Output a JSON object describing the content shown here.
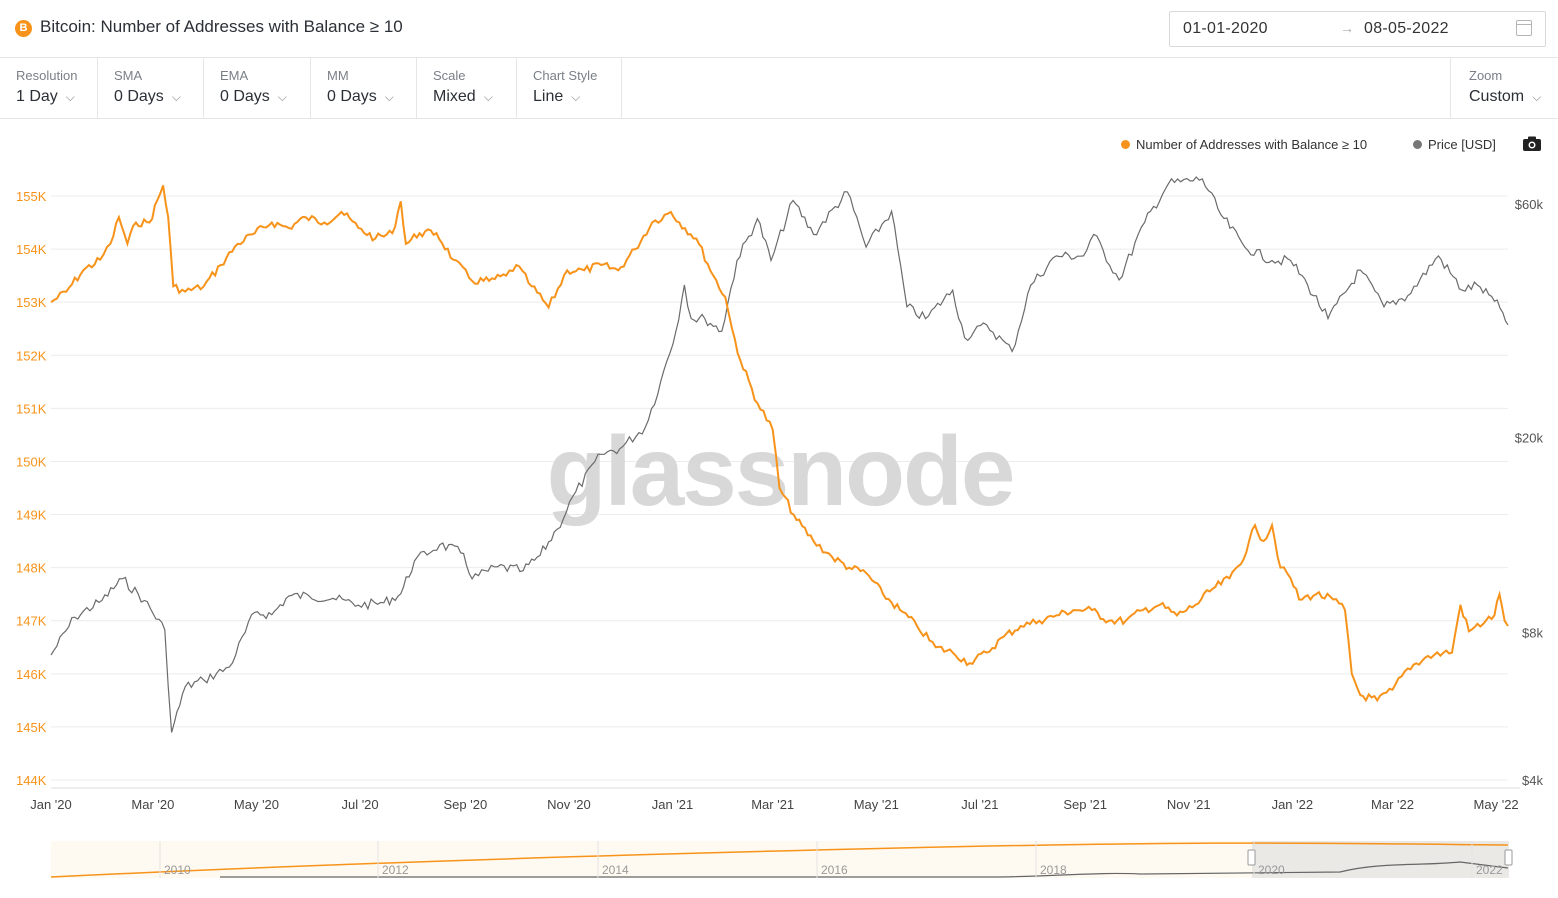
{
  "header": {
    "coin_symbol": "B",
    "title": "Bitcoin: Number of Addresses with Balance ≥ 10",
    "date_start": "01-01-2020",
    "date_arrow": "→",
    "date_end": "08-05-2022"
  },
  "toolbar": [
    {
      "label": "Resolution",
      "value": "1 Day"
    },
    {
      "label": "SMA",
      "value": "0 Days"
    },
    {
      "label": "EMA",
      "value": "0 Days"
    },
    {
      "label": "MM",
      "value": "0 Days"
    },
    {
      "label": "Scale",
      "value": "Mixed"
    },
    {
      "label": "Chart Style",
      "value": "Line"
    }
  ],
  "zoom": {
    "label": "Zoom",
    "value": "Custom"
  },
  "chevron": "⌵",
  "legend": [
    {
      "name": "Number of Addresses with Balance ≥ 10",
      "color": "#f7931a"
    },
    {
      "name": "Price [USD]",
      "color": "#777777"
    }
  ],
  "watermark": "glassnode",
  "colors": {
    "addresses": "#f7931a",
    "price": "#6b6b6b",
    "grid": "#ececec"
  },
  "chart_data": {
    "type": "line",
    "x_ticks": [
      "Jan '20",
      "Mar '20",
      "May '20",
      "Jul '20",
      "Sep '20",
      "Nov '20",
      "Jan '21",
      "Mar '21",
      "May '21",
      "Jul '21",
      "Sep '21",
      "Nov '21",
      "Jan '22",
      "Mar '22",
      "May '22"
    ],
    "y_left": {
      "ticks": [
        "155K",
        "154K",
        "153K",
        "152K",
        "151K",
        "150K",
        "149K",
        "148K",
        "147K",
        "146K",
        "145K",
        "144K"
      ],
      "range": [
        144000,
        155000
      ]
    },
    "y_right": {
      "ticks": [
        "$60k",
        "$20k",
        "$8k",
        "$4k"
      ],
      "scale": "log",
      "range": [
        4000,
        60000
      ]
    },
    "series": [
      {
        "name": "Number of Addresses with Balance ≥ 10",
        "axis": "left",
        "points": [
          [
            "2020-01-01",
            153000
          ],
          [
            "2020-01-10",
            153200
          ],
          [
            "2020-01-20",
            153600
          ],
          [
            "2020-01-30",
            153800
          ],
          [
            "2020-02-05",
            154100
          ],
          [
            "2020-02-10",
            154600
          ],
          [
            "2020-02-15",
            154100
          ],
          [
            "2020-02-20",
            154500
          ],
          [
            "2020-02-28",
            154500
          ],
          [
            "2020-03-07",
            155200
          ],
          [
            "2020-03-10",
            154600
          ],
          [
            "2020-03-13",
            153300
          ],
          [
            "2020-03-20",
            153200
          ],
          [
            "2020-03-31",
            153300
          ],
          [
            "2020-04-10",
            153700
          ],
          [
            "2020-04-20",
            154100
          ],
          [
            "2020-04-30",
            154300
          ],
          [
            "2020-05-10",
            154500
          ],
          [
            "2020-05-20",
            154400
          ],
          [
            "2020-05-30",
            154600
          ],
          [
            "2020-06-10",
            154500
          ],
          [
            "2020-06-20",
            154700
          ],
          [
            "2020-06-30",
            154400
          ],
          [
            "2020-07-10",
            154200
          ],
          [
            "2020-07-20",
            154300
          ],
          [
            "2020-07-25",
            154900
          ],
          [
            "2020-07-28",
            154100
          ],
          [
            "2020-08-05",
            154300
          ],
          [
            "2020-08-15",
            154300
          ],
          [
            "2020-08-25",
            153800
          ],
          [
            "2020-09-05",
            153400
          ],
          [
            "2020-09-15",
            153400
          ],
          [
            "2020-09-25",
            153500
          ],
          [
            "2020-10-01",
            153700
          ],
          [
            "2020-10-10",
            153300
          ],
          [
            "2020-10-20",
            152900
          ],
          [
            "2020-10-31",
            153600
          ],
          [
            "2020-11-10",
            153600
          ],
          [
            "2020-11-20",
            153700
          ],
          [
            "2020-11-30",
            153600
          ],
          [
            "2020-12-10",
            154000
          ],
          [
            "2020-12-20",
            154500
          ],
          [
            "2020-12-31",
            154700
          ],
          [
            "2021-01-05",
            154500
          ],
          [
            "2021-01-15",
            154200
          ],
          [
            "2021-01-25",
            153500
          ],
          [
            "2021-02-01",
            153100
          ],
          [
            "2021-02-05",
            152500
          ],
          [
            "2021-02-10",
            151900
          ],
          [
            "2021-02-20",
            151100
          ],
          [
            "2021-03-01",
            150600
          ],
          [
            "2021-03-05",
            149500
          ],
          [
            "2021-03-15",
            148900
          ],
          [
            "2021-03-25",
            148500
          ],
          [
            "2021-04-05",
            148200
          ],
          [
            "2021-04-15",
            148000
          ],
          [
            "2021-04-25",
            147900
          ],
          [
            "2021-05-05",
            147500
          ],
          [
            "2021-05-15",
            147200
          ],
          [
            "2021-05-25",
            146900
          ],
          [
            "2021-06-05",
            146500
          ],
          [
            "2021-06-15",
            146400
          ],
          [
            "2021-06-25",
            146200
          ],
          [
            "2021-07-05",
            146400
          ],
          [
            "2021-07-15",
            146700
          ],
          [
            "2021-07-25",
            146900
          ],
          [
            "2021-08-05",
            147000
          ],
          [
            "2021-08-15",
            147100
          ],
          [
            "2021-08-25",
            147200
          ],
          [
            "2021-09-05",
            147200
          ],
          [
            "2021-09-15",
            147000
          ],
          [
            "2021-09-25",
            147000
          ],
          [
            "2021-10-05",
            147200
          ],
          [
            "2021-10-15",
            147300
          ],
          [
            "2021-10-25",
            147100
          ],
          [
            "2021-11-05",
            147300
          ],
          [
            "2021-11-15",
            147600
          ],
          [
            "2021-11-25",
            147800
          ],
          [
            "2021-12-05",
            148300
          ],
          [
            "2021-12-10",
            148800
          ],
          [
            "2021-12-15",
            148500
          ],
          [
            "2021-12-20",
            148800
          ],
          [
            "2021-12-25",
            148000
          ],
          [
            "2021-12-31",
            147800
          ],
          [
            "2022-01-05",
            147400
          ],
          [
            "2022-01-15",
            147500
          ],
          [
            "2022-01-25",
            147400
          ],
          [
            "2022-02-01",
            147200
          ],
          [
            "2022-02-05",
            146000
          ],
          [
            "2022-02-10",
            145600
          ],
          [
            "2022-02-20",
            145500
          ],
          [
            "2022-03-01",
            145700
          ],
          [
            "2022-03-10",
            146100
          ],
          [
            "2022-03-20",
            146300
          ],
          [
            "2022-03-31",
            146400
          ],
          [
            "2022-04-05",
            146400
          ],
          [
            "2022-04-10",
            147300
          ],
          [
            "2022-04-15",
            146800
          ],
          [
            "2022-04-25",
            147000
          ],
          [
            "2022-04-30",
            147100
          ],
          [
            "2022-05-03",
            147500
          ],
          [
            "2022-05-06",
            147000
          ],
          [
            "2022-05-08",
            146900
          ]
        ]
      },
      {
        "name": "Price [USD]",
        "axis": "right",
        "points": [
          [
            "2020-01-01",
            7200
          ],
          [
            "2020-01-15",
            8600
          ],
          [
            "2020-01-31",
            9300
          ],
          [
            "2020-02-12",
            10300
          ],
          [
            "2020-02-25",
            9300
          ],
          [
            "2020-03-08",
            8100
          ],
          [
            "2020-03-12",
            5000
          ],
          [
            "2020-03-20",
            6200
          ],
          [
            "2020-03-31",
            6400
          ],
          [
            "2020-04-15",
            6800
          ],
          [
            "2020-04-30",
            8800
          ],
          [
            "2020-05-10",
            8700
          ],
          [
            "2020-05-20",
            9500
          ],
          [
            "2020-06-01",
            9500
          ],
          [
            "2020-06-15",
            9400
          ],
          [
            "2020-06-30",
            9100
          ],
          [
            "2020-07-15",
            9200
          ],
          [
            "2020-07-25",
            9600
          ],
          [
            "2020-08-02",
            11200
          ],
          [
            "2020-08-17",
            12100
          ],
          [
            "2020-08-31",
            11600
          ],
          [
            "2020-09-05",
            10300
          ],
          [
            "2020-09-20",
            10900
          ],
          [
            "2020-10-05",
            10700
          ],
          [
            "2020-10-15",
            11500
          ],
          [
            "2020-10-25",
            13000
          ],
          [
            "2020-11-05",
            15500
          ],
          [
            "2020-11-20",
            18500
          ],
          [
            "2020-12-01",
            19000
          ],
          [
            "2020-12-16",
            21000
          ],
          [
            "2020-12-25",
            26000
          ],
          [
            "2021-01-03",
            33000
          ],
          [
            "2021-01-08",
            41000
          ],
          [
            "2021-01-12",
            35000
          ],
          [
            "2021-01-20",
            35000
          ],
          [
            "2021-01-30",
            33000
          ],
          [
            "2021-02-08",
            46000
          ],
          [
            "2021-02-20",
            56000
          ],
          [
            "2021-02-28",
            46000
          ],
          [
            "2021-03-13",
            61000
          ],
          [
            "2021-03-25",
            52000
          ],
          [
            "2021-04-14",
            63500
          ],
          [
            "2021-04-25",
            49000
          ],
          [
            "2021-05-10",
            58000
          ],
          [
            "2021-05-19",
            37000
          ],
          [
            "2021-05-30",
            35000
          ],
          [
            "2021-06-15",
            40000
          ],
          [
            "2021-06-22",
            32000
          ],
          [
            "2021-07-05",
            34000
          ],
          [
            "2021-07-20",
            30000
          ],
          [
            "2021-07-31",
            41000
          ],
          [
            "2021-08-15",
            47000
          ],
          [
            "2021-08-31",
            47000
          ],
          [
            "2021-09-06",
            52000
          ],
          [
            "2021-09-21",
            42000
          ],
          [
            "2021-10-06",
            55000
          ],
          [
            "2021-10-20",
            66000
          ],
          [
            "2021-11-09",
            67500
          ],
          [
            "2021-11-20",
            57000
          ],
          [
            "2021-12-04",
            49000
          ],
          [
            "2021-12-20",
            46000
          ],
          [
            "2021-12-31",
            46000
          ],
          [
            "2022-01-10",
            41000
          ],
          [
            "2022-01-22",
            35000
          ],
          [
            "2022-02-10",
            44000
          ],
          [
            "2022-02-24",
            37000
          ],
          [
            "2022-03-10",
            39000
          ],
          [
            "2022-03-28",
            47000
          ],
          [
            "2022-04-11",
            40000
          ],
          [
            "2022-04-20",
            41000
          ],
          [
            "2022-04-30",
            38000
          ],
          [
            "2022-05-05",
            36000
          ],
          [
            "2022-05-08",
            34000
          ]
        ]
      }
    ],
    "navigator_ticks": [
      "2010",
      "2012",
      "2014",
      "2016",
      "2018",
      "2020",
      "2022"
    ]
  }
}
